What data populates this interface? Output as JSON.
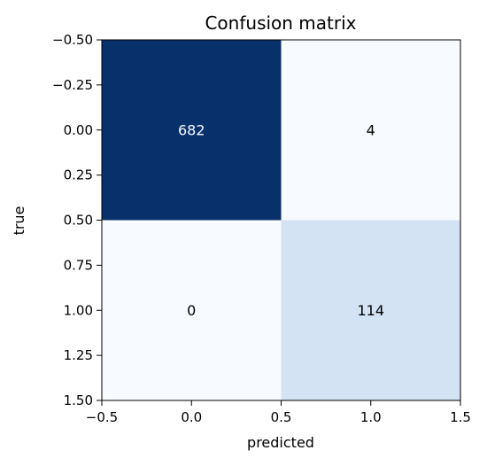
{
  "chart_data": {
    "type": "heatmap",
    "title": "Confusion matrix",
    "xlabel": "predicted",
    "ylabel": "true",
    "colormap": "Blues",
    "matrix": [
      [
        682,
        4
      ],
      [
        0,
        114
      ]
    ],
    "xlim": [
      -0.5,
      1.5
    ],
    "ylim": [
      1.5,
      -0.5
    ],
    "xticks": [
      "−0.5",
      "0.0",
      "0.5",
      "1.0",
      "1.5"
    ],
    "yticks": [
      "−0.50",
      "−0.25",
      "0.00",
      "0.25",
      "0.50",
      "0.75",
      "1.00",
      "1.25",
      "1.50"
    ],
    "cell_colors": [
      [
        "#08306b",
        "#f7fbff"
      ],
      [
        "#f7fbff",
        "#d3e3f3"
      ]
    ],
    "label_colors": [
      [
        "#f7fbff",
        "#000000"
      ],
      [
        "#000000",
        "#000000"
      ]
    ],
    "grid": false,
    "colorbar": false
  }
}
